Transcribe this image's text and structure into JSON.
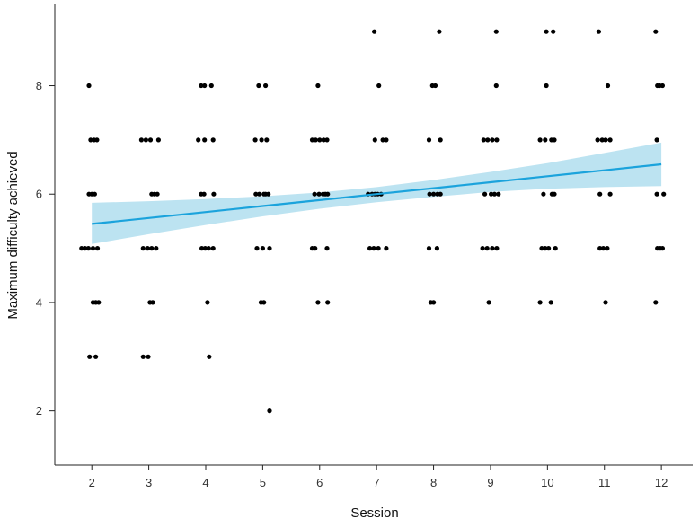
{
  "chart_data": {
    "type": "scatter",
    "xlabel": "Session",
    "ylabel": "Maximum difficulty achieved",
    "xlim": [
      1.35,
      12.55
    ],
    "ylim": [
      1.0,
      9.5
    ],
    "x_ticks": [
      2,
      3,
      4,
      5,
      6,
      7,
      8,
      9,
      10,
      11,
      12
    ],
    "y_ticks": [
      2,
      4,
      6,
      8
    ],
    "grid": false,
    "legend": "none",
    "colors": {
      "points": "#000000",
      "fit_line": "#1ba3dc",
      "ci_band": "#abdcee"
    },
    "points": [
      [
        1.95,
        8
      ],
      [
        1.98,
        7
      ],
      [
        2.04,
        7
      ],
      [
        2.09,
        7
      ],
      [
        1.95,
        6
      ],
      [
        2.0,
        6
      ],
      [
        2.05,
        6
      ],
      [
        1.82,
        5
      ],
      [
        1.88,
        5
      ],
      [
        1.94,
        5
      ],
      [
        2.02,
        5
      ],
      [
        2.1,
        5
      ],
      [
        2.02,
        4
      ],
      [
        2.07,
        4
      ],
      [
        2.12,
        4
      ],
      [
        1.96,
        3
      ],
      [
        2.07,
        3
      ],
      [
        2.87,
        7
      ],
      [
        2.95,
        7
      ],
      [
        3.03,
        7
      ],
      [
        3.17,
        7
      ],
      [
        3.05,
        6
      ],
      [
        3.1,
        6
      ],
      [
        3.15,
        6
      ],
      [
        2.9,
        5
      ],
      [
        2.98,
        5
      ],
      [
        3.05,
        5
      ],
      [
        3.13,
        5
      ],
      [
        3.02,
        4
      ],
      [
        3.07,
        4
      ],
      [
        2.9,
        3
      ],
      [
        2.99,
        3
      ],
      [
        3.92,
        8
      ],
      [
        3.98,
        8
      ],
      [
        4.1,
        8
      ],
      [
        3.87,
        7
      ],
      [
        3.98,
        7
      ],
      [
        4.13,
        7
      ],
      [
        3.92,
        6
      ],
      [
        3.97,
        6
      ],
      [
        4.14,
        6
      ],
      [
        3.93,
        5
      ],
      [
        3.99,
        5
      ],
      [
        4.05,
        5
      ],
      [
        4.13,
        5
      ],
      [
        4.03,
        4
      ],
      [
        4.06,
        3
      ],
      [
        4.93,
        8
      ],
      [
        5.05,
        8
      ],
      [
        4.87,
        7
      ],
      [
        4.98,
        7
      ],
      [
        5.07,
        7
      ],
      [
        4.88,
        6
      ],
      [
        4.94,
        6
      ],
      [
        5.02,
        6
      ],
      [
        5.05,
        6
      ],
      [
        5.1,
        6
      ],
      [
        4.9,
        5
      ],
      [
        5.0,
        5
      ],
      [
        5.12,
        5
      ],
      [
        4.97,
        4
      ],
      [
        5.02,
        4
      ],
      [
        5.12,
        2
      ],
      [
        5.97,
        8
      ],
      [
        5.87,
        7
      ],
      [
        5.93,
        7
      ],
      [
        6.0,
        7
      ],
      [
        6.07,
        7
      ],
      [
        6.13,
        7
      ],
      [
        5.91,
        6
      ],
      [
        5.99,
        6
      ],
      [
        6.06,
        6
      ],
      [
        6.1,
        6
      ],
      [
        6.14,
        6
      ],
      [
        5.87,
        5
      ],
      [
        5.92,
        5
      ],
      [
        6.13,
        5
      ],
      [
        5.97,
        4
      ],
      [
        6.14,
        4
      ],
      [
        6.96,
        9
      ],
      [
        7.04,
        8
      ],
      [
        6.97,
        7
      ],
      [
        7.11,
        7
      ],
      [
        7.17,
        7
      ],
      [
        6.85,
        6
      ],
      [
        6.92,
        6
      ],
      [
        6.97,
        6
      ],
      [
        7.02,
        6
      ],
      [
        7.08,
        6
      ],
      [
        6.88,
        5
      ],
      [
        6.95,
        5
      ],
      [
        7.03,
        5
      ],
      [
        7.17,
        5
      ],
      [
        8.1,
        9
      ],
      [
        7.98,
        8
      ],
      [
        8.03,
        8
      ],
      [
        7.92,
        7
      ],
      [
        8.12,
        7
      ],
      [
        7.93,
        6
      ],
      [
        8.0,
        6
      ],
      [
        8.07,
        6
      ],
      [
        8.12,
        6
      ],
      [
        7.92,
        5
      ],
      [
        8.06,
        5
      ],
      [
        7.95,
        4
      ],
      [
        8.0,
        4
      ],
      [
        9.1,
        9
      ],
      [
        9.1,
        8
      ],
      [
        8.88,
        7
      ],
      [
        8.95,
        7
      ],
      [
        9.03,
        7
      ],
      [
        9.11,
        7
      ],
      [
        8.9,
        6
      ],
      [
        9.01,
        6
      ],
      [
        9.07,
        6
      ],
      [
        9.14,
        6
      ],
      [
        8.86,
        5
      ],
      [
        8.94,
        5
      ],
      [
        9.03,
        5
      ],
      [
        9.11,
        5
      ],
      [
        8.97,
        4
      ],
      [
        9.98,
        9
      ],
      [
        10.1,
        9
      ],
      [
        9.98,
        8
      ],
      [
        9.87,
        7
      ],
      [
        9.96,
        7
      ],
      [
        10.07,
        7
      ],
      [
        10.12,
        7
      ],
      [
        9.93,
        6
      ],
      [
        10.08,
        6
      ],
      [
        10.12,
        6
      ],
      [
        9.9,
        5
      ],
      [
        9.96,
        5
      ],
      [
        10.02,
        5
      ],
      [
        10.14,
        5
      ],
      [
        9.87,
        4
      ],
      [
        10.06,
        4
      ],
      [
        10.9,
        9
      ],
      [
        11.06,
        8
      ],
      [
        10.88,
        7
      ],
      [
        10.96,
        7
      ],
      [
        11.02,
        7
      ],
      [
        11.1,
        7
      ],
      [
        10.92,
        6
      ],
      [
        11.1,
        6
      ],
      [
        10.92,
        5
      ],
      [
        10.98,
        5
      ],
      [
        11.05,
        5
      ],
      [
        11.02,
        4
      ],
      [
        11.9,
        9
      ],
      [
        11.93,
        8
      ],
      [
        11.97,
        8
      ],
      [
        12.02,
        8
      ],
      [
        11.92,
        7
      ],
      [
        11.92,
        6
      ],
      [
        12.04,
        6
      ],
      [
        11.93,
        5
      ],
      [
        11.98,
        5
      ],
      [
        12.02,
        5
      ],
      [
        11.9,
        4
      ]
    ],
    "fit": {
      "x": [
        2,
        3,
        4,
        5,
        6,
        7,
        8,
        9,
        10,
        11,
        12
      ],
      "y": [
        5.45,
        5.56,
        5.67,
        5.78,
        5.89,
        6.0,
        6.11,
        6.22,
        6.33,
        6.44,
        6.55
      ],
      "ci_lower": [
        5.08,
        5.26,
        5.43,
        5.59,
        5.73,
        5.85,
        5.95,
        6.04,
        6.1,
        6.13,
        6.15
      ],
      "ci_upper": [
        5.84,
        5.87,
        5.91,
        5.96,
        6.03,
        6.13,
        6.26,
        6.41,
        6.57,
        6.76,
        6.95
      ]
    }
  }
}
